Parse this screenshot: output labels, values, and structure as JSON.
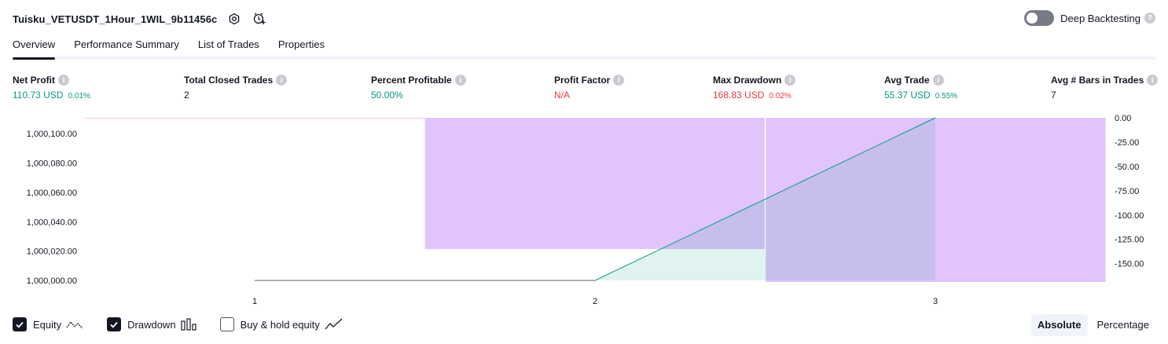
{
  "header": {
    "title": "Tuisku_VETUSDT_1Hour_1WIL_9b11456c",
    "settings_icon": "gear-icon",
    "alert_icon": "add-alert-icon"
  },
  "deep_backtesting": {
    "label": "Deep Backtesting",
    "enabled": false,
    "help": "?"
  },
  "tabs": [
    {
      "label": "Overview",
      "active": true
    },
    {
      "label": "Performance Summary",
      "active": false
    },
    {
      "label": "List of Trades",
      "active": false
    },
    {
      "label": "Properties",
      "active": false
    }
  ],
  "metrics": {
    "net_profit": {
      "label": "Net Profit",
      "value": "110.73 USD",
      "pct": "0.01%",
      "color": "#089981"
    },
    "total_closed_trades": {
      "label": "Total Closed Trades",
      "value": "2"
    },
    "percent_profitable": {
      "label": "Percent Profitable",
      "value": "50.00%",
      "color": "#089981"
    },
    "profit_factor": {
      "label": "Profit Factor",
      "value": "N/A",
      "color": "#f23645"
    },
    "max_drawdown": {
      "label": "Max Drawdown",
      "value": "168.83 USD",
      "pct": "0.02%",
      "color": "#f23645"
    },
    "avg_trade": {
      "label": "Avg Trade",
      "value": "55.37 USD",
      "pct": "0.55%",
      "color": "#089981"
    },
    "avg_bars": {
      "label": "Avg # Bars in Trades",
      "value": "7"
    }
  },
  "chart_data": {
    "type": "area",
    "x_ticks": [
      "1",
      "2",
      "3"
    ],
    "left_axis": {
      "label": "Equity",
      "ticks": [
        "1,000,100.00",
        "1,000,080.00",
        "1,000,060.00",
        "1,000,040.00",
        "1,000,020.00",
        "1,000,000.00"
      ],
      "tick_values": [
        1000100,
        1000080,
        1000060,
        1000040,
        1000020,
        1000000
      ],
      "range": [
        999999,
        1000110.73
      ]
    },
    "right_axis": {
      "label": "Drawdown",
      "ticks": [
        "0.00",
        "-25.00",
        "-50.00",
        "-75.00",
        "-100.00",
        "-125.00",
        "-150.00"
      ],
      "tick_values": [
        0,
        -25,
        -50,
        -75,
        -100,
        -125,
        -150
      ],
      "range": [
        -168.83,
        0
      ]
    },
    "equity": {
      "color": "#089981",
      "points": [
        {
          "x": 1,
          "y": 1000000
        },
        {
          "x": 2,
          "y": 1000000
        },
        {
          "x": 3,
          "y": 1000110.73
        }
      ]
    },
    "drawdown": {
      "color": "#e1c4fc",
      "bars": [
        {
          "x_start": 1.5,
          "x_end": 2.5,
          "value": -135
        },
        {
          "x_start": 2.5,
          "x_end": 3.5,
          "value": -168.83
        }
      ]
    }
  },
  "legend": [
    {
      "label": "Equity",
      "checked": true,
      "icon": "equity-line-icon"
    },
    {
      "label": "Drawdown",
      "checked": true,
      "icon": "drawdown-bars-icon"
    },
    {
      "label": "Buy & hold equity",
      "checked": false,
      "icon": "buy-hold-line-icon"
    }
  ],
  "mode": {
    "options": [
      "Absolute",
      "Percentage"
    ],
    "active": "Absolute"
  }
}
